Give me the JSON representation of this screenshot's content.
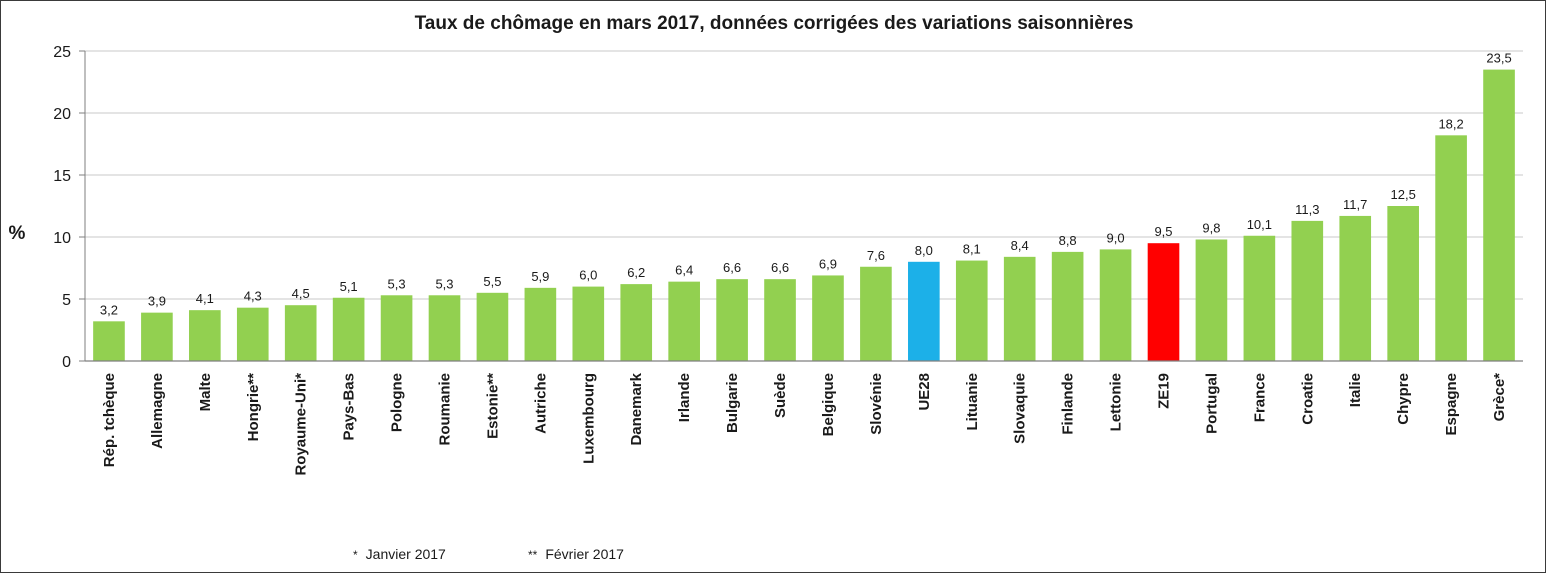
{
  "chart_data": {
    "type": "bar",
    "title": "Taux de chômage en mars 2017, données corrigées des variations saisonnières",
    "ylabel": "%",
    "xlabel": "",
    "ylim": [
      0,
      25
    ],
    "yticks": [
      "0",
      "5",
      "10",
      "15",
      "20",
      "25"
    ],
    "grid": true,
    "categories": [
      "Rép. tchèque",
      "Allemagne",
      "Malte",
      "Hongrie**",
      "Royaume-Uni*",
      "Pays-Bas",
      "Pologne",
      "Roumanie",
      "Estonie**",
      "Autriche",
      "Luxembourg",
      "Danemark",
      "Irlande",
      "Bulgarie",
      "Suède",
      "Belgique",
      "Slovénie",
      "UE28",
      "Lituanie",
      "Slovaquie",
      "Finlande",
      "Lettonie",
      "ZE19",
      "Portugal",
      "France",
      "Croatie",
      "Italie",
      "Chypre",
      "Espagne",
      "Grèce*"
    ],
    "values": [
      3.2,
      3.9,
      4.1,
      4.3,
      4.5,
      5.1,
      5.3,
      5.3,
      5.5,
      5.9,
      6.0,
      6.2,
      6.4,
      6.6,
      6.6,
      6.9,
      7.6,
      8.0,
      8.1,
      8.4,
      8.8,
      9.0,
      9.5,
      9.8,
      10.1,
      11.3,
      11.7,
      12.5,
      18.2,
      23.5
    ],
    "value_labels": [
      "3,2",
      "3,9",
      "4,1",
      "4,3",
      "4,5",
      "5,1",
      "5,3",
      "5,3",
      "5,5",
      "5,9",
      "6,0",
      "6,2",
      "6,4",
      "6,6",
      "6,6",
      "6,9",
      "7,6",
      "8,0",
      "8,1",
      "8,4",
      "8,8",
      "9,0",
      "9,5",
      "9,8",
      "10,1",
      "11,3",
      "11,7",
      "12,5",
      "18,2",
      "23,5"
    ],
    "colors": {
      "default": "#92d050",
      "highlight": {
        "UE28": "#1cb0e8",
        "ZE19": "#ff0000"
      },
      "grid": "#c8c8c8",
      "axis": "#7f7f7f"
    },
    "footnotes": [
      {
        "mark": "*",
        "text": "Janvier 2017"
      },
      {
        "mark": "**",
        "text": "Février  2017"
      }
    ]
  }
}
